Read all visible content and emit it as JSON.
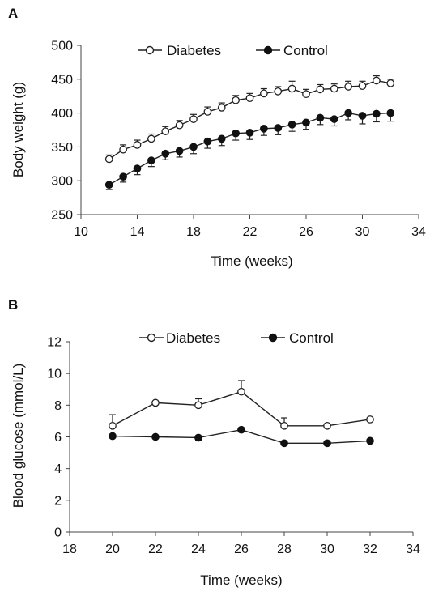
{
  "colors": {
    "marker_open_fill": "#ffffff",
    "marker_filled": "#111111",
    "line": "#222222",
    "background": "#ffffff"
  },
  "chart_data": [
    {
      "panel": "A",
      "type": "line",
      "xlabel": "Time (weeks)",
      "ylabel": "Body weight (g)",
      "xlim": [
        10,
        34
      ],
      "ylim": [
        250,
        500
      ],
      "xticks": [
        10,
        14,
        18,
        22,
        26,
        30,
        34
      ],
      "yticks": [
        250,
        300,
        350,
        400,
        450,
        500
      ],
      "legend_position": "top",
      "x": [
        12,
        13,
        14,
        15,
        16,
        17,
        18,
        19,
        20,
        21,
        22,
        23,
        24,
        25,
        26,
        27,
        28,
        29,
        30,
        31,
        32
      ],
      "series": [
        {
          "name": "Diabetes",
          "marker": "open-circle",
          "values": [
            332,
            346,
            353,
            362,
            373,
            382,
            391,
            402,
            408,
            419,
            422,
            429,
            432,
            436,
            428,
            435,
            436,
            439,
            440,
            448,
            444
          ],
          "error": [
            6,
            7,
            7,
            7,
            7,
            7,
            7,
            7,
            7,
            7,
            7,
            7,
            7,
            11,
            7,
            7,
            7,
            8,
            7,
            7,
            6
          ]
        },
        {
          "name": "Control",
          "marker": "filled-circle",
          "values": [
            294,
            306,
            318,
            330,
            340,
            344,
            350,
            358,
            362,
            370,
            371,
            377,
            378,
            383,
            386,
            393,
            391,
            400,
            396,
            399,
            400
          ],
          "error": [
            7,
            8,
            9,
            9,
            9,
            9,
            10,
            10,
            10,
            10,
            10,
            10,
            10,
            10,
            10,
            10,
            10,
            10,
            12,
            12,
            12
          ]
        }
      ]
    },
    {
      "panel": "B",
      "type": "line",
      "xlabel": "Time (weeks)",
      "ylabel": "Blood glucose (mmol/L)",
      "xlim": [
        18,
        34
      ],
      "ylim": [
        0,
        12
      ],
      "xticks": [
        18,
        20,
        22,
        24,
        26,
        28,
        30,
        32,
        34
      ],
      "yticks": [
        0,
        2,
        4,
        6,
        8,
        10,
        12
      ],
      "legend_position": "top",
      "x": [
        20,
        22,
        24,
        26,
        28,
        30,
        32
      ],
      "series": [
        {
          "name": "Diabetes",
          "marker": "open-circle",
          "values": [
            6.7,
            8.15,
            8.0,
            8.85,
            6.7,
            6.7,
            7.1
          ],
          "error": [
            0.7,
            0,
            0.4,
            0.7,
            0.5,
            0,
            0
          ]
        },
        {
          "name": "Control",
          "marker": "filled-circle",
          "values": [
            6.05,
            6.0,
            5.95,
            6.45,
            5.6,
            5.6,
            5.75
          ],
          "error": [
            0,
            0,
            0.15,
            0,
            0.1,
            0,
            0
          ]
        }
      ]
    }
  ]
}
